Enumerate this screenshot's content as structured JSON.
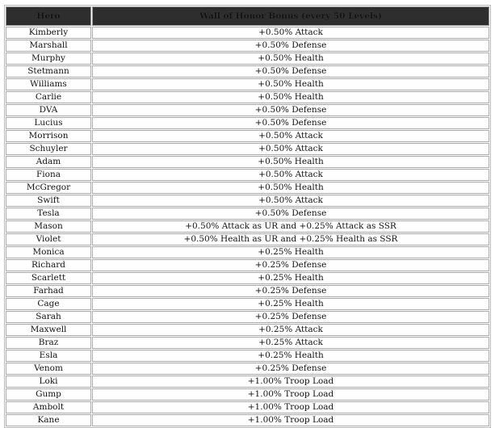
{
  "headers": [
    "Hero",
    "Wall of Honor Bonus (every 50 Levels)"
  ],
  "rows": [
    [
      "Kimberly",
      "+0.50% Attack"
    ],
    [
      "Marshall",
      "+0.50% Defense"
    ],
    [
      "Murphy",
      "+0.50% Health"
    ],
    [
      "Stetmann",
      "+0.50% Defense"
    ],
    [
      "Williams",
      "+0.50% Health"
    ],
    [
      "Carlie",
      "+0.50% Health"
    ],
    [
      "DVA",
      "+0.50% Defense"
    ],
    [
      "Lucius",
      "+0.50% Defense"
    ],
    [
      "Morrison",
      "+0.50% Attack"
    ],
    [
      "Schuyler",
      "+0.50% Attack"
    ],
    [
      "Adam",
      "+0.50% Health"
    ],
    [
      "Fiona",
      "+0.50% Attack"
    ],
    [
      "McGregor",
      "+0.50% Health"
    ],
    [
      "Swift",
      "+0.50% Attack"
    ],
    [
      "Tesla",
      "+0.50% Defense"
    ],
    [
      "Mason",
      "+0.50% Attack as UR and +0.25% Attack as SSR"
    ],
    [
      "Violet",
      "+0.50% Health as UR and +0.25% Health as SSR"
    ],
    [
      "Monica",
      "+0.25% Health"
    ],
    [
      "Richard",
      "+0.25% Defense"
    ],
    [
      "Scarlett",
      "+0.25% Health"
    ],
    [
      "Farhad",
      "+0.25% Defense"
    ],
    [
      "Cage",
      "+0.25% Health"
    ],
    [
      "Sarah",
      "+0.25% Defense"
    ],
    [
      "Maxwell",
      "+0.25% Attack"
    ],
    [
      "Braz",
      "+0.25% Attack"
    ],
    [
      "Esla",
      "+0.25% Health"
    ],
    [
      "Venom",
      "+0.25% Defense"
    ],
    [
      "Loki",
      "+1.00% Troop Load"
    ],
    [
      "Gump",
      "+1.00% Troop Load"
    ],
    [
      "Ambolt",
      "+1.00% Troop Load"
    ],
    [
      "Kane",
      "+1.00% Troop Load"
    ]
  ]
}
